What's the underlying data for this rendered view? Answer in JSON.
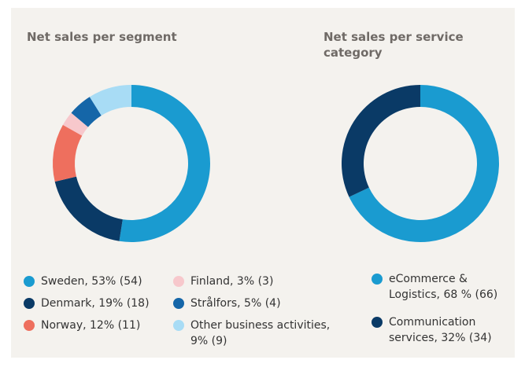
{
  "chart_data": [
    {
      "type": "pie",
      "title": "Net sales per segment",
      "categories": [
        "Sweden, 53% (54)",
        "Denmark, 19% (18)",
        "Norway, 12% (11)",
        "Finland, 3% (3)",
        "Strålfors, 5% (4)",
        "Other business activities, 9% (9)"
      ],
      "values": [
        53,
        19,
        12,
        3,
        5,
        9
      ],
      "colors": [
        "#1a9bd0",
        "#0a3a66",
        "#ee6f5e",
        "#f7c8cc",
        "#1566a8",
        "#a8dcf5"
      ]
    },
    {
      "type": "pie",
      "title": "Net sales per service category",
      "categories": [
        "eCommerce & Logistics, 68 % (66)",
        "Communication services, 32% (34)"
      ],
      "values": [
        68,
        32
      ],
      "colors": [
        "#1a9bd0",
        "#0a3a66"
      ]
    }
  ]
}
